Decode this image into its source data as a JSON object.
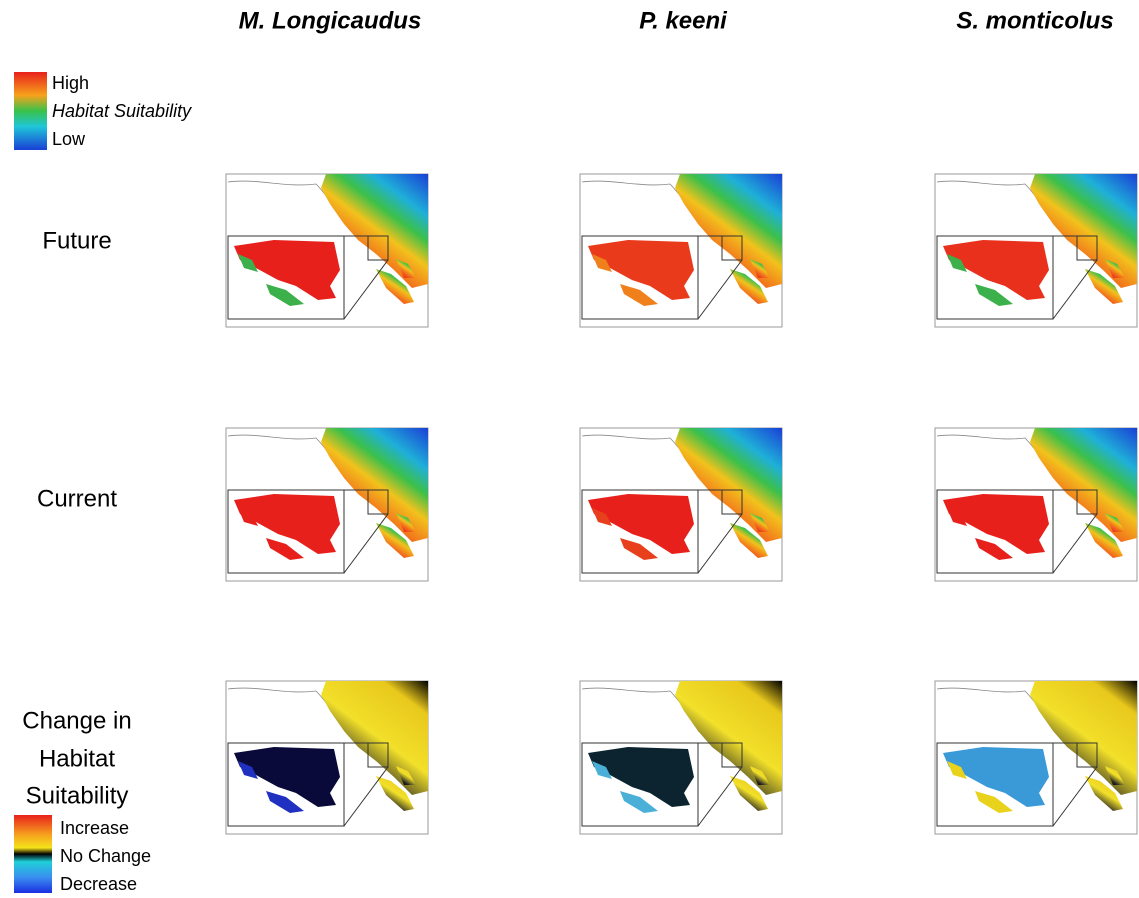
{
  "column_titles": [
    "M. Longicaudus",
    "P. keeni",
    "S. monticolus"
  ],
  "row_labels": [
    "Future",
    "Current"
  ],
  "change_label": [
    "Change in",
    "Habitat",
    "Suitability"
  ],
  "legend_suitability": {
    "high": "High",
    "title": "Habitat Suitability",
    "low": "Low"
  },
  "legend_change": {
    "increase": "Increase",
    "no_change": "No Change",
    "decrease": "Decrease"
  }
}
